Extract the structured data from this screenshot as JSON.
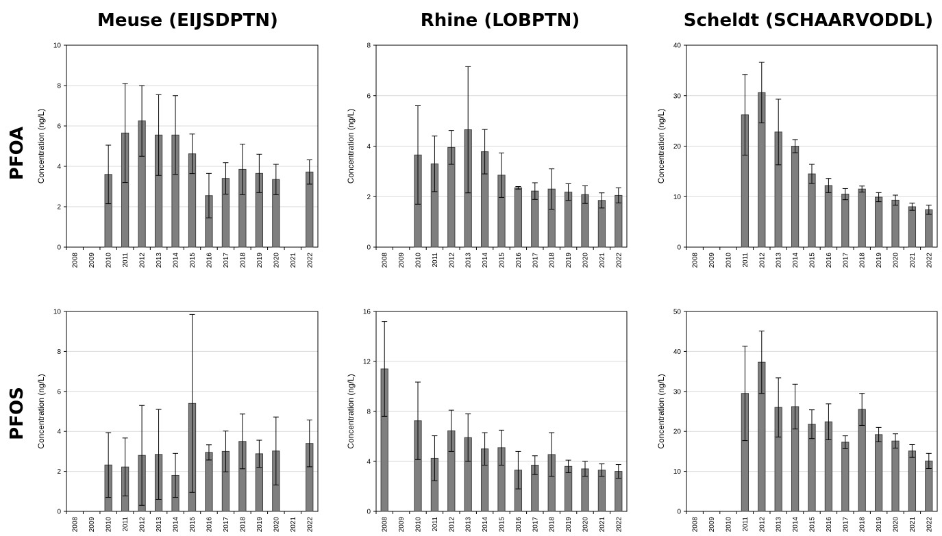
{
  "row_labels": [
    "PFOA",
    "PFOS"
  ],
  "colors": {
    "bar_fill": "#7f7f7f",
    "bar_stroke": "#404040",
    "grid": "#d9d9d9",
    "axis": "#000000"
  },
  "chart_data": [
    {
      "type": "bar",
      "title": "Meuse (EIJSDPTN)",
      "ylabel": "Concentration (ng/L)",
      "categories": [
        "2008",
        "2009",
        "2010",
        "2011",
        "2012",
        "2013",
        "2014",
        "2015",
        "2016",
        "2017",
        "2018",
        "2019",
        "2020",
        "2021",
        "2022"
      ],
      "values": [
        null,
        null,
        3.6,
        5.65,
        6.25,
        5.55,
        5.55,
        4.62,
        2.55,
        3.4,
        3.85,
        3.65,
        3.35,
        null,
        3.72
      ],
      "error": [
        null,
        null,
        1.45,
        2.45,
        1.75,
        2.0,
        1.95,
        0.98,
        1.1,
        0.78,
        1.25,
        0.95,
        0.75,
        null,
        0.6
      ],
      "ylim": [
        0,
        10
      ],
      "yticks": [
        0,
        2,
        4,
        6,
        8,
        10
      ],
      "grid": true
    },
    {
      "type": "bar",
      "title": "Rhine (LOBPTN)",
      "ylabel": "Concentration (ng/L)",
      "categories": [
        "2008",
        "2009",
        "2010",
        "2011",
        "2012",
        "2013",
        "2014",
        "2015",
        "2016",
        "2017",
        "2018",
        "2019",
        "2020",
        "2021",
        "2022"
      ],
      "values": [
        null,
        null,
        3.65,
        3.3,
        3.95,
        4.65,
        3.78,
        2.85,
        2.35,
        2.22,
        2.3,
        2.18,
        2.08,
        1.85,
        2.05
      ],
      "error": [
        null,
        null,
        1.95,
        1.1,
        0.67,
        2.5,
        0.88,
        0.88,
        0.05,
        0.33,
        0.8,
        0.33,
        0.35,
        0.3,
        0.3
      ],
      "ylim": [
        0,
        8
      ],
      "yticks": [
        0,
        2,
        4,
        6,
        8
      ],
      "grid": true
    },
    {
      "type": "bar",
      "title": "Scheldt (SCHAARVODDL)",
      "ylabel": "Concentration (ng/L)",
      "categories": [
        "2008",
        "2009",
        "2010",
        "2011",
        "2012",
        "2013",
        "2014",
        "2015",
        "2016",
        "2017",
        "2018",
        "2019",
        "2020",
        "2021",
        "2022"
      ],
      "values": [
        null,
        null,
        null,
        26.2,
        30.6,
        22.8,
        20.0,
        14.5,
        12.2,
        10.5,
        11.5,
        9.9,
        9.3,
        8.0,
        7.4
      ],
      "error": [
        null,
        null,
        null,
        8.0,
        6.0,
        6.5,
        1.3,
        1.9,
        1.4,
        1.1,
        0.6,
        0.9,
        1.0,
        0.7,
        0.9
      ],
      "ylim": [
        0,
        40
      ],
      "yticks": [
        0,
        10,
        20,
        30,
        40
      ],
      "grid": true
    },
    {
      "type": "bar",
      "title": "",
      "ylabel": "Concentration (ng/L)",
      "categories": [
        "2008",
        "2009",
        "2010",
        "2011",
        "2012",
        "2013",
        "2014",
        "2015",
        "2016",
        "2017",
        "2018",
        "2019",
        "2020",
        "2021",
        "2022"
      ],
      "values": [
        null,
        null,
        2.32,
        2.22,
        2.8,
        2.85,
        1.8,
        5.4,
        2.95,
        3.0,
        3.5,
        2.88,
        3.02,
        null,
        3.4
      ],
      "error": [
        null,
        null,
        1.62,
        1.45,
        2.5,
        2.25,
        1.1,
        4.45,
        0.38,
        1.02,
        1.37,
        0.68,
        1.7,
        null,
        1.17
      ],
      "ylim": [
        0,
        10
      ],
      "yticks": [
        0,
        2,
        4,
        6,
        8,
        10
      ],
      "grid": true
    },
    {
      "type": "bar",
      "title": "",
      "ylabel": "Concentration (ng/L)",
      "categories": [
        "2008",
        "2009",
        "2010",
        "2011",
        "2012",
        "2013",
        "2014",
        "2015",
        "2016",
        "2017",
        "2018",
        "2019",
        "2020",
        "2021",
        "2022"
      ],
      "values": [
        11.4,
        null,
        7.25,
        4.25,
        6.45,
        5.9,
        5.0,
        5.1,
        3.3,
        3.7,
        4.55,
        3.6,
        3.4,
        3.3,
        3.2
      ],
      "error": [
        3.8,
        null,
        3.1,
        1.8,
        1.65,
        1.9,
        1.3,
        1.4,
        1.5,
        0.75,
        1.75,
        0.5,
        0.6,
        0.5,
        0.55
      ],
      "ylim": [
        0,
        16
      ],
      "yticks": [
        0,
        4,
        8,
        12,
        16
      ],
      "grid": true
    },
    {
      "type": "bar",
      "title": "",
      "ylabel": "Concentration (ng/L)",
      "categories": [
        "2008",
        "2009",
        "2010",
        "2011",
        "2012",
        "2013",
        "2014",
        "2015",
        "2016",
        "2017",
        "2018",
        "2019",
        "2020",
        "2021",
        "2022"
      ],
      "values": [
        null,
        null,
        null,
        29.5,
        37.3,
        26.0,
        26.2,
        21.8,
        22.4,
        17.3,
        25.5,
        19.2,
        17.6,
        15.1,
        12.6
      ],
      "error": [
        null,
        null,
        null,
        11.8,
        7.8,
        7.4,
        5.6,
        3.6,
        4.5,
        1.6,
        4.0,
        1.8,
        1.8,
        1.6,
        1.9
      ],
      "ylim": [
        0,
        50
      ],
      "yticks": [
        0,
        10,
        20,
        30,
        40,
        50
      ],
      "grid": true
    }
  ]
}
